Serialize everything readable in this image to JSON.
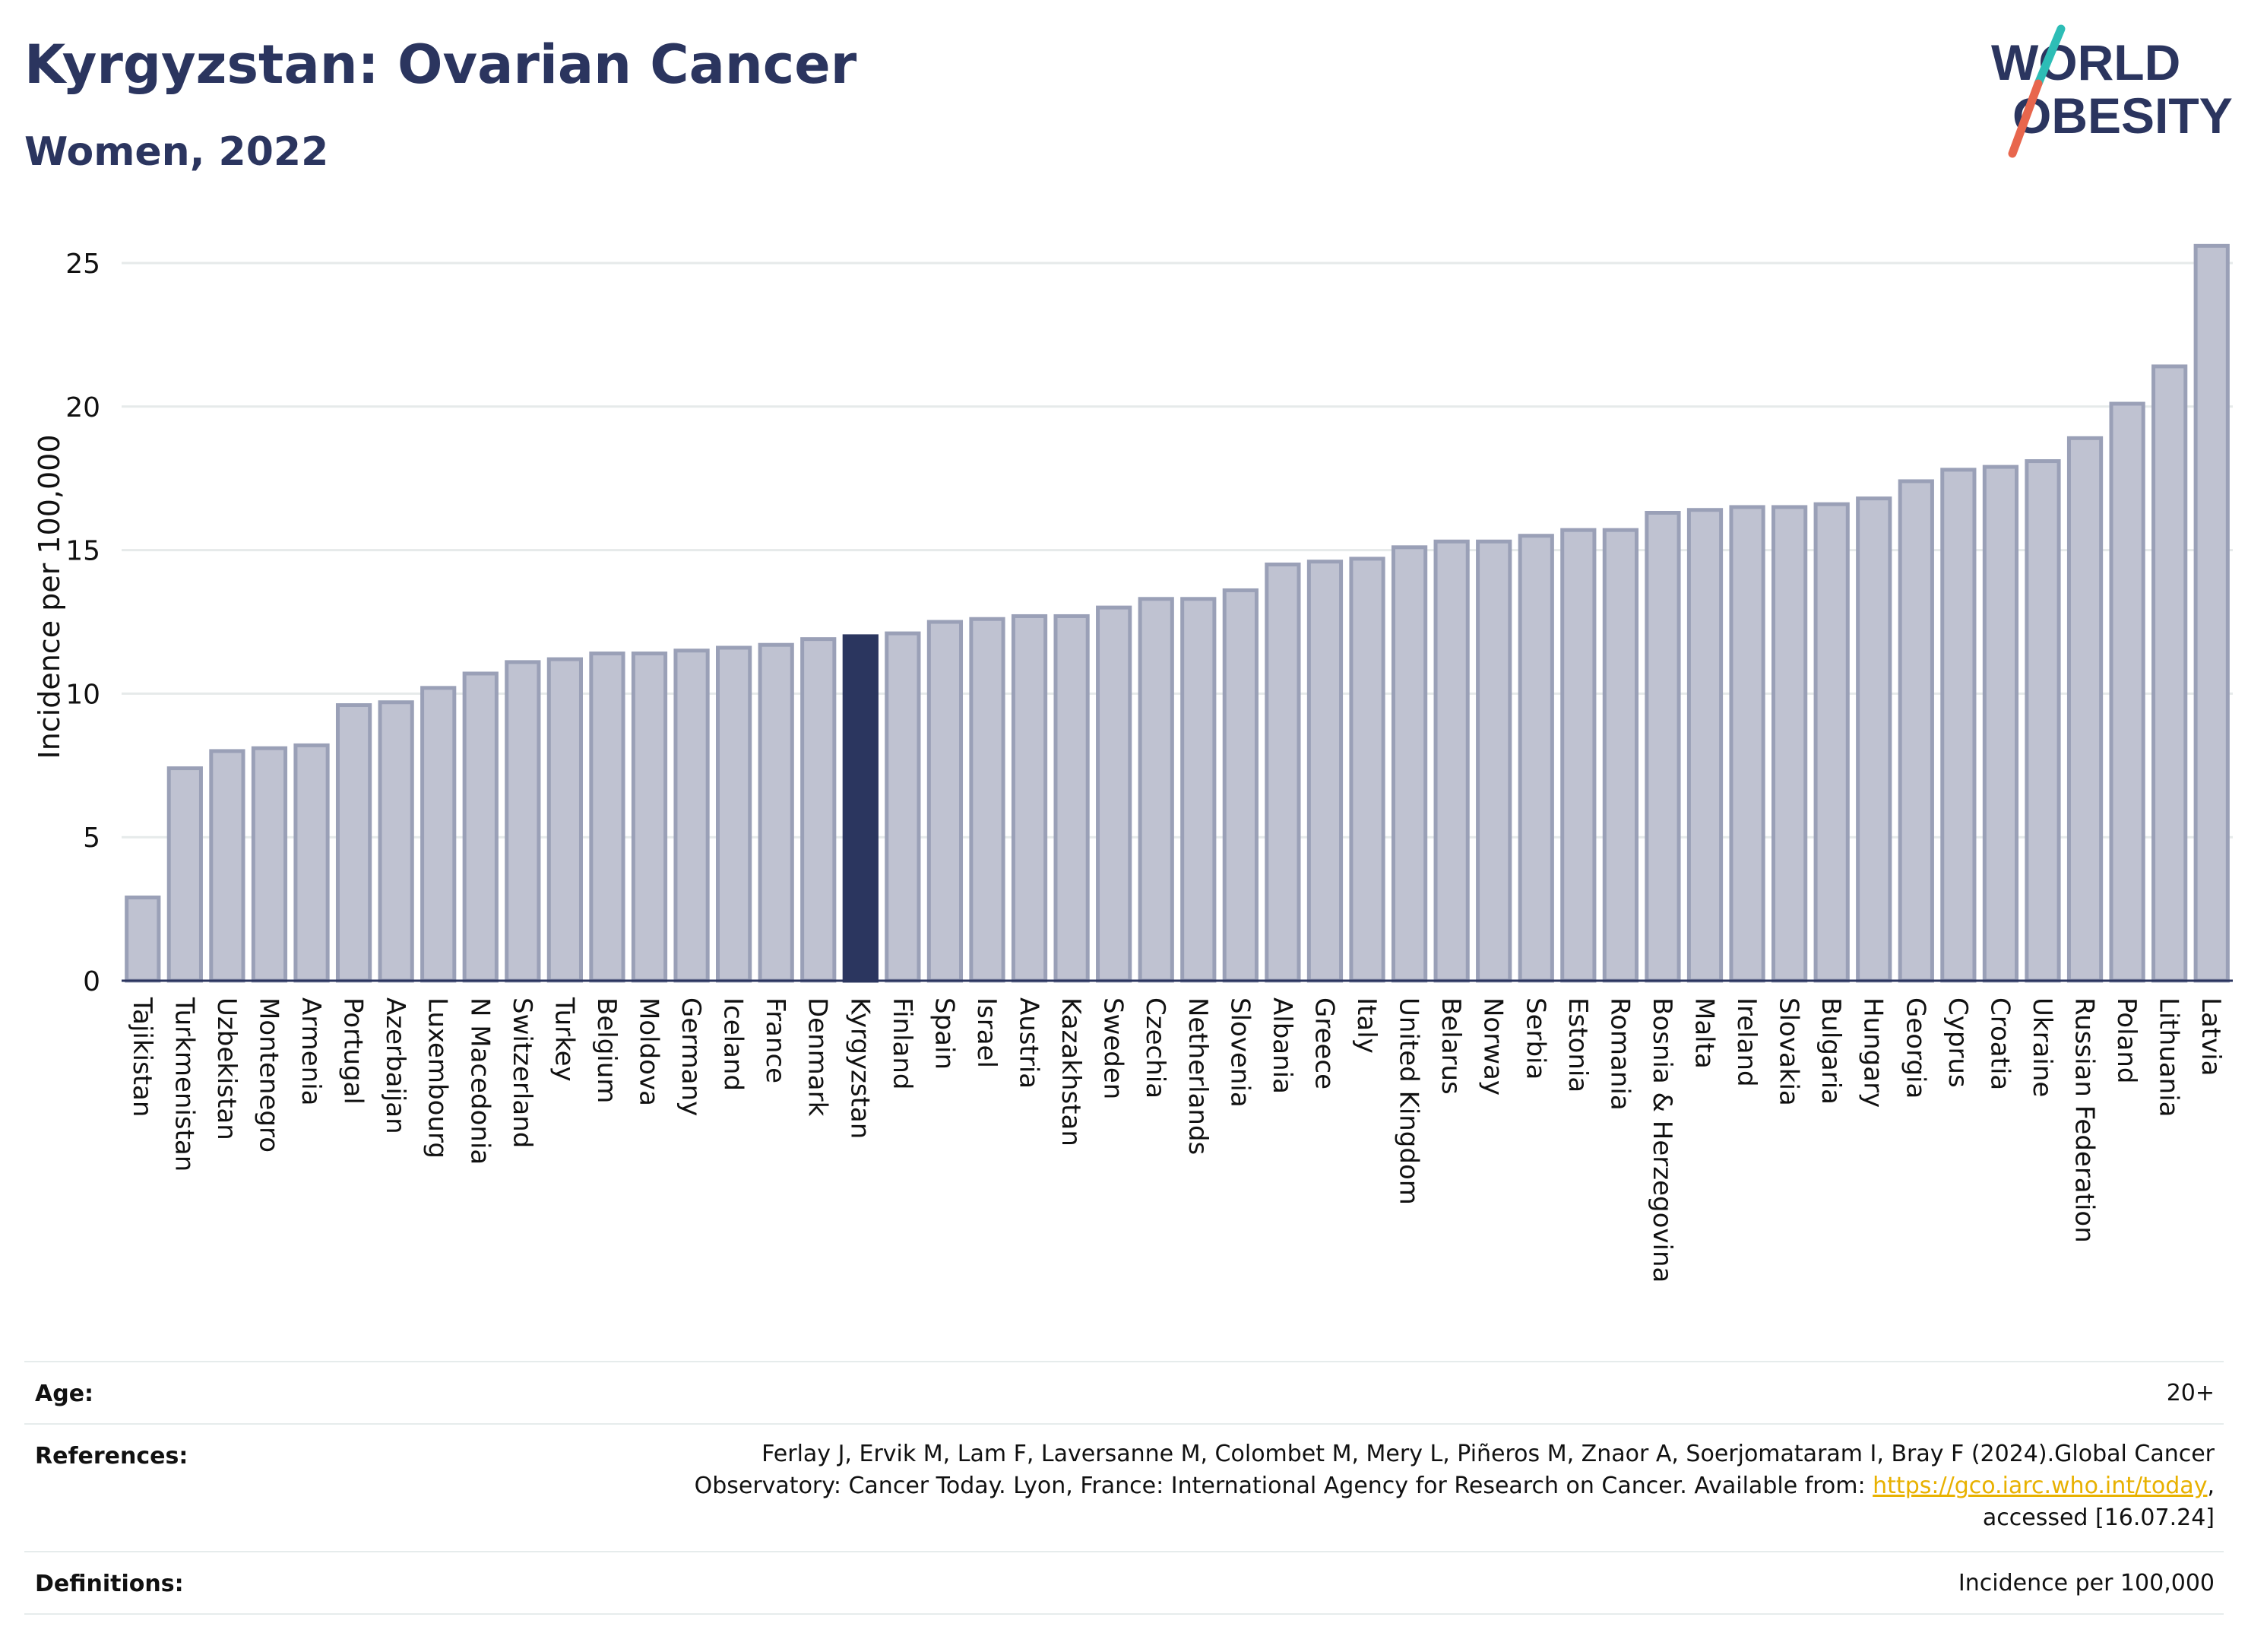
{
  "header": {
    "title": "Kyrgyzstan: Ovarian Cancer",
    "subtitle": "Women, 2022"
  },
  "logo": {
    "line1": "WORLD",
    "line2": "OBESITY",
    "slash_colors": [
      "#2dbdb6",
      "#e8664d"
    ]
  },
  "colors": {
    "bar": "#bfc2d1",
    "bar_border": "#9aa0b7",
    "highlight": "#2b365f",
    "text": "#2b355f",
    "link": "#e8b100"
  },
  "chart_data": {
    "type": "bar",
    "ylabel": "Incidence per 100,000",
    "ylim": [
      0,
      26
    ],
    "yticks": [
      0,
      5,
      10,
      15,
      20,
      25
    ],
    "grid": true,
    "highlight": "Kyrgyzstan",
    "categories": [
      "Tajikistan",
      "Turkmenistan",
      "Uzbekistan",
      "Montenegro",
      "Armenia",
      "Portugal",
      "Azerbaijan",
      "Luxembourg",
      "N Macedonia",
      "Switzerland",
      "Turkey",
      "Belgium",
      "Moldova",
      "Germany",
      "Iceland",
      "France",
      "Denmark",
      "Kyrgyzstan",
      "Finland",
      "Spain",
      "Israel",
      "Austria",
      "Kazakhstan",
      "Sweden",
      "Czechia",
      "Netherlands",
      "Slovenia",
      "Albania",
      "Greece",
      "Italy",
      "United Kingdom",
      "Belarus",
      "Norway",
      "Serbia",
      "Estonia",
      "Romania",
      "Bosnia & Herzegovina",
      "Malta",
      "Ireland",
      "Slovakia",
      "Bulgaria",
      "Hungary",
      "Georgia",
      "Cyprus",
      "Croatia",
      "Ukraine",
      "Russian Federation",
      "Poland",
      "Lithuania",
      "Latvia"
    ],
    "values": [
      2.9,
      7.4,
      8.0,
      8.1,
      8.2,
      9.6,
      9.7,
      10.2,
      10.7,
      11.1,
      11.2,
      11.4,
      11.4,
      11.5,
      11.6,
      11.7,
      11.9,
      12.0,
      12.1,
      12.5,
      12.6,
      12.7,
      12.7,
      13.0,
      13.3,
      13.3,
      13.6,
      14.5,
      14.6,
      14.7,
      15.1,
      15.3,
      15.3,
      15.5,
      15.7,
      15.7,
      16.3,
      16.4,
      16.5,
      16.5,
      16.6,
      16.8,
      17.4,
      17.8,
      17.9,
      18.1,
      18.9,
      20.1,
      21.4,
      25.6
    ]
  },
  "info": {
    "age_label": "Age:",
    "age_value": "20+",
    "references_label": "References:",
    "references_line1": "Ferlay J, Ervik M, Lam F, Laversanne M, Colombet M, Mery L, Piñeros M, Znaor A, Soerjomataram I, Bray F (2024).Global Cancer",
    "references_line2_prefix": "Observatory: Cancer Today. Lyon, France: International Agency for Research on Cancer. Available from: ",
    "references_link": "https://gco.iarc.who.int/today",
    "references_line2_suffix": ",",
    "references_line3": "accessed [16.07.24]",
    "definitions_label": "Definitions:",
    "definitions_value": "Incidence per 100,000"
  }
}
